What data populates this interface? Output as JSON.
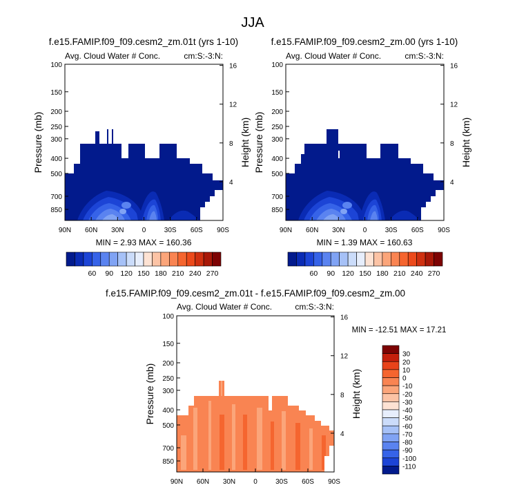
{
  "figure_title": "JJA",
  "colors": {
    "blues": [
      "#021a8c",
      "#0a2bb4",
      "#1c44d6",
      "#3663e8",
      "#5a83f0",
      "#80a3f4",
      "#a6c1f7",
      "#cbdcfa",
      "#e7eefc"
    ],
    "reds": [
      "#fde2d3",
      "#fcc3a5",
      "#fba57a",
      "#f98452",
      "#f5652f",
      "#ec4a1b",
      "#cf3010",
      "#a81808",
      "#7d0303"
    ],
    "frame": "#000000"
  },
  "chart_data": [
    {
      "id": "panel-a",
      "type": "heatmap",
      "title": "f.e15.FAMIP.f09_f09.cesm2_zm.01t (yrs 1-10)",
      "left_label": "Avg. Cloud Water # Conc.",
      "right_label": "cm:S:-3:N:",
      "ylabel": "Pressure (mb)",
      "ylabel_right": "Height (km)",
      "xticks": [
        "90N",
        "60N",
        "30N",
        "0",
        "30S",
        "60S",
        "90S"
      ],
      "yticks": [
        "100",
        "150",
        "200",
        "250",
        "300",
        "400",
        "500",
        "700",
        "850"
      ],
      "yticks_right": [
        "16",
        "12",
        "8",
        "4"
      ],
      "ylim": [
        100,
        1000
      ],
      "log_y": true,
      "stats": "MIN =  2.93  MAX = 160.36",
      "min": 2.93,
      "max": 160.36
    },
    {
      "id": "panel-b",
      "type": "heatmap",
      "title": "f.e15.FAMIP.f09_f09.cesm2_zm.00 (yrs 1-10)",
      "left_label": "Avg. Cloud Water # Conc.",
      "right_label": "cm:S:-3:N:",
      "ylabel": "Pressure (mb)",
      "ylabel_right": "Height (km)",
      "xticks": [
        "90N",
        "60N",
        "30N",
        "0",
        "30S",
        "60S",
        "90S"
      ],
      "yticks": [
        "100",
        "150",
        "200",
        "250",
        "300",
        "400",
        "500",
        "700",
        "850"
      ],
      "yticks_right": [
        "16",
        "12",
        "8",
        "4"
      ],
      "ylim": [
        100,
        1000
      ],
      "log_y": true,
      "stats": "MIN =  1.39  MAX = 160.63",
      "min": 1.39,
      "max": 160.63
    },
    {
      "id": "panel-diff",
      "type": "heatmap",
      "title": "f.e15.FAMIP.f09_f09.cesm2_zm.01t - f.e15.FAMIP.f09_f09.cesm2_zm.00",
      "left_label": "Avg. Cloud Water # Conc.",
      "right_label": "cm:S:-3:N:",
      "ylabel": "Pressure (mb)",
      "ylabel_right": "Height (km)",
      "xticks": [
        "90N",
        "60N",
        "30N",
        "0",
        "30S",
        "60S",
        "90S"
      ],
      "yticks": [
        "100",
        "150",
        "200",
        "250",
        "300",
        "400",
        "500",
        "700",
        "850"
      ],
      "yticks_right": [
        "16",
        "12",
        "8",
        "4"
      ],
      "ylim": [
        100,
        1000
      ],
      "log_y": true,
      "stats": "MIN = -12.51   MAX =  17.21",
      "min": -12.51,
      "max": 17.21
    }
  ],
  "colorbar_top": {
    "labels": [
      "60",
      "90",
      "120",
      "150",
      "180",
      "210",
      "240",
      "270"
    ]
  },
  "colorbar_diff": {
    "labels": [
      "30",
      "20",
      "10",
      "0",
      "-10",
      "-20",
      "-30",
      "-40",
      "-50",
      "-60",
      "-70",
      "-80",
      "-90",
      "-100",
      "-110"
    ],
    "colors": [
      "#7d0303",
      "#c41f0c",
      "#e8431a",
      "#f5652f",
      "#f98452",
      "#fba57a",
      "#fcc3a5",
      "#fde2d3",
      "#e7eefc",
      "#cbdcfa",
      "#a6c1f7",
      "#80a3f4",
      "#5a83f0",
      "#3663e8",
      "#1c44d6",
      "#021a8c"
    ]
  }
}
